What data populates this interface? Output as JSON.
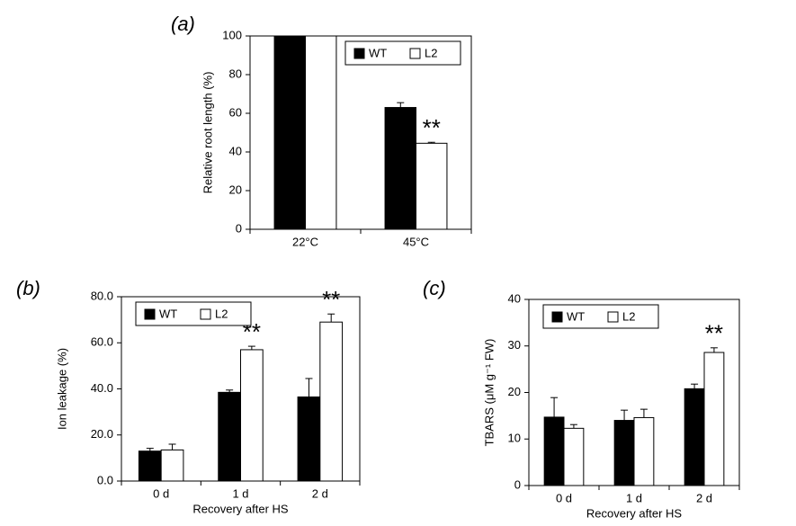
{
  "chart_data": [
    {
      "type": "bar",
      "panel_label": "(a)",
      "ylabel": "Relative root length (%)",
      "categories": [
        "22°C",
        "45°C"
      ],
      "series": [
        {
          "name": "WT",
          "color": "#000000",
          "values": [
            100,
            63
          ],
          "errors": [
            0,
            2.5
          ]
        },
        {
          "name": "L2",
          "color": "#ffffff",
          "values": [
            100,
            44.5
          ],
          "errors": [
            0,
            0.5
          ]
        }
      ],
      "ylim": [
        0,
        100
      ],
      "yticks": [
        0,
        20,
        40,
        60,
        80,
        100
      ],
      "legend": "upper right",
      "annotations": [
        {
          "text": "**",
          "x": "45°C",
          "series": "L2"
        }
      ]
    },
    {
      "type": "bar",
      "panel_label": "(b)",
      "ylabel": "Ion leakage (%)",
      "xlabel": "Recovery after HS",
      "categories": [
        "0 d",
        "1 d",
        "2 d"
      ],
      "series": [
        {
          "name": "WT",
          "color": "#000000",
          "values": [
            13,
            38.5,
            36.5
          ],
          "errors": [
            1.2,
            1,
            8
          ]
        },
        {
          "name": "L2",
          "color": "#ffffff",
          "values": [
            13.5,
            57,
            69
          ],
          "errors": [
            2.5,
            1.5,
            3.5
          ]
        }
      ],
      "ylim": [
        0,
        80
      ],
      "yticks": [
        {
          "value": 0,
          "label": "0.0"
        },
        {
          "value": 20,
          "label": "20.0"
        },
        {
          "value": 40,
          "label": "40.0"
        },
        {
          "value": 60,
          "label": "60.0"
        },
        {
          "value": 80,
          "label": "80.0"
        }
      ],
      "legend": "upper left",
      "annotations": [
        {
          "text": "**",
          "x": "1 d",
          "series": "L2"
        },
        {
          "text": "**",
          "x": "2 d",
          "series": "L2"
        }
      ]
    },
    {
      "type": "bar",
      "panel_label": "(c)",
      "ylabel": "TBARS (μM g⁻¹ FW)",
      "xlabel": "Recovery after HS",
      "categories": [
        "0 d",
        "1 d",
        "2 d"
      ],
      "series": [
        {
          "name": "WT",
          "color": "#000000",
          "values": [
            14.7,
            14,
            20.8
          ],
          "errors": [
            4.2,
            2.2,
            1
          ]
        },
        {
          "name": "L2",
          "color": "#ffffff",
          "values": [
            12.3,
            14.6,
            28.6
          ],
          "errors": [
            0.8,
            1.8,
            1
          ]
        }
      ],
      "ylim": [
        0,
        40
      ],
      "yticks": [
        0,
        10,
        20,
        30,
        40
      ],
      "legend": "upper left",
      "annotations": [
        {
          "text": "**",
          "x": "2 d",
          "series": "L2"
        }
      ]
    }
  ]
}
